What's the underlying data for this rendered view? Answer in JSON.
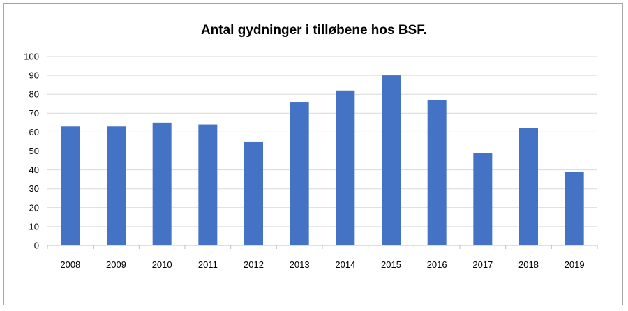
{
  "chart_data": {
    "type": "bar",
    "title": "Antal gydninger i tilløbene hos BSF.",
    "xlabel": "",
    "ylabel": "",
    "categories": [
      "2008",
      "2009",
      "2010",
      "2011",
      "2012",
      "2013",
      "2014",
      "2015",
      "2016",
      "2017",
      "2018",
      "2019"
    ],
    "values": [
      63,
      63,
      65,
      64,
      55,
      76,
      82,
      90,
      77,
      49,
      62,
      39
    ],
    "ylim": [
      0,
      100
    ],
    "yticks": [
      0,
      10,
      20,
      30,
      40,
      50,
      60,
      70,
      80,
      90,
      100
    ],
    "grid": true,
    "legend": "none",
    "colors": {
      "bar": "#4472c4",
      "grid": "#d9d9d9",
      "axis": "#bfbfbf"
    }
  }
}
